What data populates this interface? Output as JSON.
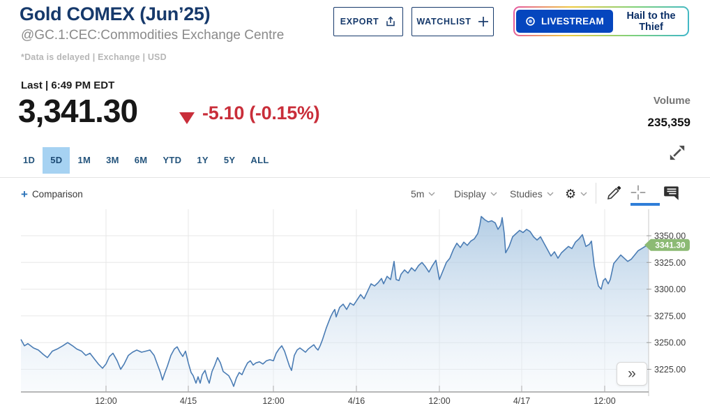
{
  "header": {
    "title": "Gold COMEX (Jun’25)",
    "subtitle": "@GC.1:CEC:Commodities Exchange Centre",
    "data_note": "*Data is delayed | Exchange | USD",
    "export_label": "EXPORT",
    "watchlist_label": "WATCHLIST",
    "livestream_label": "LIVESTREAM",
    "livestream_title": "Hail to the Thief"
  },
  "quote": {
    "last_label": "Last | 6:49 PM EDT",
    "price": "3,341.30",
    "change": "-5.10 (-0.15%)",
    "direction": "down",
    "volume_label": "Volume",
    "volume": "235,359"
  },
  "ranges": {
    "items": [
      "1D",
      "5D",
      "1M",
      "3M",
      "6M",
      "YTD",
      "1Y",
      "5Y",
      "ALL"
    ],
    "selected": "5D"
  },
  "toolbar": {
    "comparison_label": "Comparison",
    "interval_label": "5m",
    "display_label": "Display",
    "studies_label": "Studies"
  },
  "icons": {
    "comparison_plus": "+",
    "gear": "⚙",
    "collapse_right": "»"
  },
  "colors": {
    "navy": "#16396b",
    "accent_blue": "#2f7ed8",
    "negative_red": "#c92e3a",
    "livestream_blue": "#0546be",
    "tab_selected_bg": "#a6d2f2",
    "badge_green": "#8cba74"
  },
  "chart_data": {
    "type": "area",
    "title": "Gold COMEX (Jun’25) 5-day chart, 5-minute intervals",
    "interval": "5m",
    "range": "5D",
    "grid": true,
    "line_color": "#4a7cb4",
    "fill_top": "#9cbedd",
    "fill_bottom": "#eef4fa",
    "grid_color": "#e7e7e7",
    "marker_color": "#8cba74",
    "last_price": 3341.3,
    "last_price_label": "3341.30",
    "y_domain": [
      3203.8,
      3374.8
    ],
    "y_ticks": [
      {
        "value": 3350,
        "label": "3350.00"
      },
      {
        "value": 3325,
        "label": "3325.00"
      },
      {
        "value": 3300,
        "label": "3300.00"
      },
      {
        "value": 3275,
        "label": "3275.00"
      },
      {
        "value": 3250,
        "label": "3250.00"
      },
      {
        "value": 3225,
        "label": "3225.00"
      }
    ],
    "x_ticks": [
      {
        "pos": 0.1356,
        "label": "12:00"
      },
      {
        "pos": 0.2667,
        "label": "4/15"
      },
      {
        "pos": 0.4022,
        "label": "12:00"
      },
      {
        "pos": 0.5344,
        "label": "4/16"
      },
      {
        "pos": 0.6667,
        "label": "12:00"
      },
      {
        "pos": 0.7978,
        "label": "4/17"
      },
      {
        "pos": 0.93,
        "label": "12:00"
      }
    ],
    "points": [
      [
        0.0,
        3253
      ],
      [
        0.0056,
        3247
      ],
      [
        0.0111,
        3249
      ],
      [
        0.02,
        3245
      ],
      [
        0.0278,
        3243
      ],
      [
        0.0356,
        3239
      ],
      [
        0.0422,
        3236
      ],
      [
        0.05,
        3242
      ],
      [
        0.0578,
        3244
      ],
      [
        0.0667,
        3247
      ],
      [
        0.0744,
        3250
      ],
      [
        0.0822,
        3247
      ],
      [
        0.0889,
        3244
      ],
      [
        0.0967,
        3242
      ],
      [
        0.1033,
        3238
      ],
      [
        0.11,
        3240
      ],
      [
        0.1167,
        3235
      ],
      [
        0.1233,
        3230
      ],
      [
        0.13,
        3226
      ],
      [
        0.1356,
        3230
      ],
      [
        0.1411,
        3237
      ],
      [
        0.1467,
        3240
      ],
      [
        0.1533,
        3233
      ],
      [
        0.1589,
        3225
      ],
      [
        0.1644,
        3230
      ],
      [
        0.1711,
        3238
      ],
      [
        0.1778,
        3241
      ],
      [
        0.1844,
        3243
      ],
      [
        0.1922,
        3241
      ],
      [
        0.1989,
        3242
      ],
      [
        0.2056,
        3243
      ],
      [
        0.2122,
        3238
      ],
      [
        0.2178,
        3229
      ],
      [
        0.2222,
        3222
      ],
      [
        0.2256,
        3215
      ],
      [
        0.2289,
        3221
      ],
      [
        0.2333,
        3228
      ],
      [
        0.2389,
        3238
      ],
      [
        0.2444,
        3244
      ],
      [
        0.2489,
        3246
      ],
      [
        0.2533,
        3241
      ],
      [
        0.2578,
        3237
      ],
      [
        0.2622,
        3242
      ],
      [
        0.2667,
        3231
      ],
      [
        0.2711,
        3222
      ],
      [
        0.2744,
        3219
      ],
      [
        0.2789,
        3212
      ],
      [
        0.2822,
        3218
      ],
      [
        0.2856,
        3212
      ],
      [
        0.2889,
        3220
      ],
      [
        0.2933,
        3224
      ],
      [
        0.2967,
        3217
      ],
      [
        0.3,
        3212
      ],
      [
        0.3044,
        3223
      ],
      [
        0.3089,
        3229
      ],
      [
        0.3133,
        3236
      ],
      [
        0.3178,
        3231
      ],
      [
        0.3222,
        3223
      ],
      [
        0.3267,
        3221
      ],
      [
        0.3311,
        3219
      ],
      [
        0.3356,
        3214
      ],
      [
        0.3389,
        3209
      ],
      [
        0.3433,
        3217
      ],
      [
        0.3478,
        3222
      ],
      [
        0.3522,
        3220
      ],
      [
        0.3567,
        3226
      ],
      [
        0.3611,
        3231
      ],
      [
        0.3656,
        3233
      ],
      [
        0.37,
        3229
      ],
      [
        0.3744,
        3231
      ],
      [
        0.38,
        3232
      ],
      [
        0.3856,
        3230
      ],
      [
        0.3911,
        3233
      ],
      [
        0.3967,
        3234
      ],
      [
        0.4022,
        3233
      ],
      [
        0.4067,
        3240
      ],
      [
        0.4111,
        3244
      ],
      [
        0.4156,
        3247
      ],
      [
        0.42,
        3242
      ],
      [
        0.4244,
        3234
      ],
      [
        0.4278,
        3228
      ],
      [
        0.4311,
        3224
      ],
      [
        0.4356,
        3238
      ],
      [
        0.44,
        3243
      ],
      [
        0.4444,
        3245
      ],
      [
        0.4489,
        3243
      ],
      [
        0.4533,
        3241
      ],
      [
        0.4578,
        3244
      ],
      [
        0.4622,
        3246
      ],
      [
        0.4667,
        3248
      ],
      [
        0.47,
        3245
      ],
      [
        0.4733,
        3243
      ],
      [
        0.4767,
        3247
      ],
      [
        0.48,
        3252
      ],
      [
        0.4833,
        3258
      ],
      [
        0.4867,
        3264
      ],
      [
        0.49,
        3269
      ],
      [
        0.4933,
        3274
      ],
      [
        0.4967,
        3278
      ],
      [
        0.5,
        3281
      ],
      [
        0.5022,
        3274
      ],
      [
        0.5078,
        3283
      ],
      [
        0.5133,
        3286
      ],
      [
        0.5189,
        3281
      ],
      [
        0.5244,
        3287
      ],
      [
        0.53,
        3285
      ],
      [
        0.5356,
        3290
      ],
      [
        0.5411,
        3295
      ],
      [
        0.5467,
        3291
      ],
      [
        0.5522,
        3298
      ],
      [
        0.5578,
        3305
      ],
      [
        0.5633,
        3303
      ],
      [
        0.5689,
        3306
      ],
      [
        0.5744,
        3310
      ],
      [
        0.5778,
        3305
      ],
      [
        0.5833,
        3312
      ],
      [
        0.5889,
        3309
      ],
      [
        0.5944,
        3326
      ],
      [
        0.5978,
        3309
      ],
      [
        0.6022,
        3308
      ],
      [
        0.6056,
        3314
      ],
      [
        0.6111,
        3318
      ],
      [
        0.6167,
        3315
      ],
      [
        0.6222,
        3320
      ],
      [
        0.6278,
        3317
      ],
      [
        0.6333,
        3322
      ],
      [
        0.6389,
        3325
      ],
      [
        0.6444,
        3321
      ],
      [
        0.65,
        3316
      ],
      [
        0.6556,
        3322
      ],
      [
        0.6611,
        3327
      ],
      [
        0.6667,
        3309
      ],
      [
        0.6722,
        3317
      ],
      [
        0.6778,
        3325
      ],
      [
        0.6833,
        3329
      ],
      [
        0.6889,
        3337
      ],
      [
        0.6944,
        3343
      ],
      [
        0.7,
        3339
      ],
      [
        0.7056,
        3344
      ],
      [
        0.7111,
        3341
      ],
      [
        0.7167,
        3345
      ],
      [
        0.7222,
        3347
      ],
      [
        0.7278,
        3352
      ],
      [
        0.7311,
        3360
      ],
      [
        0.7333,
        3368
      ],
      [
        0.7389,
        3365
      ],
      [
        0.7444,
        3363
      ],
      [
        0.75,
        3364
      ],
      [
        0.7556,
        3362
      ],
      [
        0.76,
        3356
      ],
      [
        0.7644,
        3360
      ],
      [
        0.7667,
        3367
      ],
      [
        0.77,
        3352
      ],
      [
        0.7722,
        3334
      ],
      [
        0.7778,
        3340
      ],
      [
        0.7833,
        3349
      ],
      [
        0.7889,
        3352
      ],
      [
        0.7944,
        3355
      ],
      [
        0.8,
        3353
      ],
      [
        0.8056,
        3356
      ],
      [
        0.8111,
        3354
      ],
      [
        0.8167,
        3349
      ],
      [
        0.8222,
        3346
      ],
      [
        0.8278,
        3349
      ],
      [
        0.8333,
        3343
      ],
      [
        0.8389,
        3337
      ],
      [
        0.8444,
        3331
      ],
      [
        0.85,
        3335
      ],
      [
        0.8556,
        3329
      ],
      [
        0.8611,
        3334
      ],
      [
        0.8667,
        3337
      ],
      [
        0.8722,
        3340
      ],
      [
        0.8778,
        3338
      ],
      [
        0.8833,
        3344
      ],
      [
        0.8889,
        3347
      ],
      [
        0.8944,
        3351
      ],
      [
        0.9,
        3340
      ],
      [
        0.9056,
        3342
      ],
      [
        0.9089,
        3345
      ],
      [
        0.9133,
        3322
      ],
      [
        0.9167,
        3312
      ],
      [
        0.92,
        3303
      ],
      [
        0.9244,
        3300
      ],
      [
        0.9278,
        3308
      ],
      [
        0.9311,
        3310
      ],
      [
        0.9356,
        3305
      ],
      [
        0.9389,
        3309
      ],
      [
        0.9444,
        3324
      ],
      [
        0.95,
        3328
      ],
      [
        0.9556,
        3332
      ],
      [
        0.9611,
        3329
      ],
      [
        0.9667,
        3326
      ],
      [
        0.9722,
        3328
      ],
      [
        0.9778,
        3332
      ],
      [
        0.9833,
        3336
      ],
      [
        0.9889,
        3338
      ],
      [
        0.9944,
        3340
      ],
      [
        1.0,
        3341.3
      ]
    ]
  }
}
